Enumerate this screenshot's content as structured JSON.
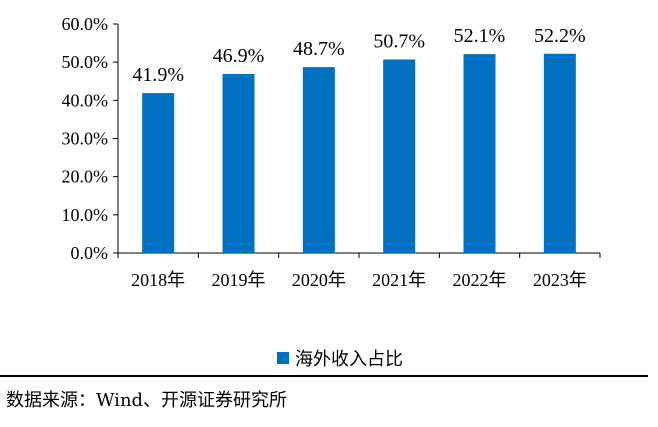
{
  "chart_data": {
    "type": "bar",
    "categories": [
      "2018年",
      "2019年",
      "2020年",
      "2021年",
      "2022年",
      "2023年"
    ],
    "series": [
      {
        "name": "海外收入占比",
        "values": [
          41.9,
          46.9,
          48.7,
          50.7,
          52.1,
          52.2
        ]
      }
    ],
    "data_labels": [
      "41.9%",
      "46.9%",
      "48.7%",
      "50.7%",
      "52.1%",
      "52.2%"
    ],
    "y_ticks": [
      "0.0%",
      "10.0%",
      "20.0%",
      "30.0%",
      "40.0%",
      "50.0%",
      "60.0%"
    ],
    "ylim": [
      0,
      60
    ],
    "grid": false,
    "legend_position": "bottom",
    "bar_color": "#0070C0"
  },
  "source_text": "数据来源：Wind、开源证券研究所"
}
